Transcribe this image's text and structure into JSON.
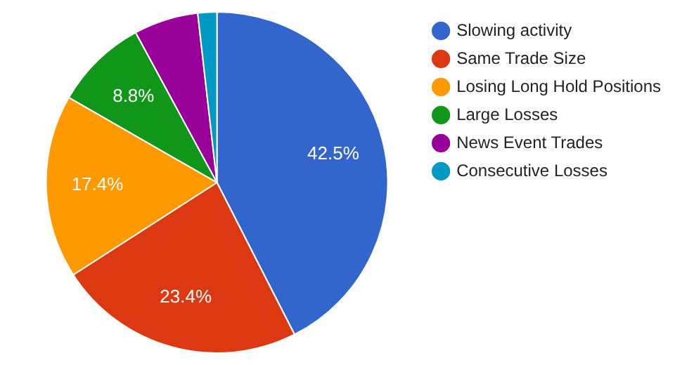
{
  "chart_data": {
    "type": "pie",
    "categories": [
      "Slowing activity",
      "Same Trade Size",
      "Losing Long Hold Positions",
      "Large Losses",
      "News Event Trades",
      "Consecutive Losses"
    ],
    "values": [
      42.5,
      23.4,
      17.4,
      8.8,
      6.1,
      1.8
    ],
    "colors": [
      "#3366cc",
      "#dc3912",
      "#ff9900",
      "#109618",
      "#990099",
      "#0099c6"
    ],
    "value_labels": [
      "42.5%",
      "23.4%",
      "17.4%",
      "8.8%",
      null,
      null
    ],
    "legend": "right"
  }
}
